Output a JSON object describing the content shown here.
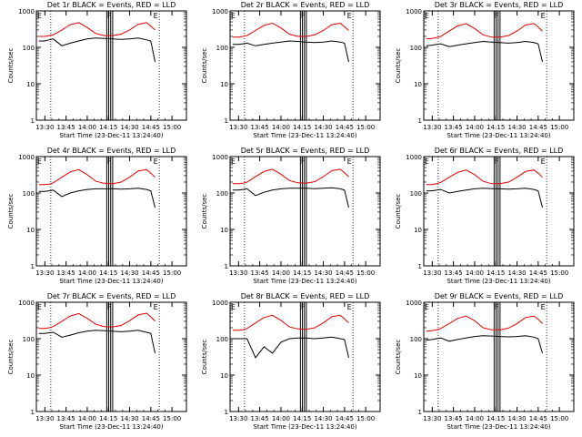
{
  "figure": {
    "black_label": "Events",
    "red_label": "LLD",
    "colors": {
      "events": "#000000",
      "lld": "#e00000",
      "axis": "#000000"
    }
  },
  "chart_data": [
    {
      "type": "line",
      "title": "Det 1r BLACK = Events, RED = LLD",
      "detector": "1r",
      "xlabel": "Start Time (23-Dec-11 13:24:40)",
      "ylabel": "Counts/sec",
      "yscale": "log",
      "ylim": [
        1,
        1000
      ],
      "y_ticks": [
        "1",
        "10",
        "100",
        "1000"
      ],
      "x_ticks": [
        "13:30",
        "13:45",
        "14:00",
        "14:15",
        "14:30",
        "14:45",
        "15:00"
      ],
      "markers": [
        "E",
        "F",
        "E"
      ],
      "series": [
        {
          "name": "Events",
          "x": [
            13.43,
            13.5,
            13.55,
            13.6,
            13.7,
            13.8,
            13.9,
            14.0,
            14.1,
            14.2,
            14.3,
            14.4,
            14.5,
            14.6,
            14.7,
            14.75,
            14.8
          ],
          "y": [
            150,
            150,
            160,
            170,
            110,
            130,
            150,
            170,
            180,
            175,
            170,
            165,
            170,
            180,
            160,
            150,
            40
          ]
        },
        {
          "name": "LLD",
          "x": [
            13.43,
            13.5,
            13.55,
            13.6,
            13.7,
            13.8,
            13.9,
            14.0,
            14.1,
            14.2,
            14.3,
            14.4,
            14.5,
            14.6,
            14.7,
            14.75,
            14.8
          ],
          "y": [
            200,
            200,
            210,
            220,
            300,
            420,
            480,
            350,
            240,
            210,
            210,
            230,
            300,
            430,
            480,
            380,
            300
          ]
        }
      ]
    },
    {
      "type": "line",
      "title": "Det 2r BLACK = Events, RED = LLD",
      "detector": "2r",
      "xlabel": "Start Time (23-Dec-11 13:24:40)",
      "ylabel": "Counts/sec",
      "yscale": "log",
      "ylim": [
        1,
        1000
      ],
      "y_ticks": [
        "1",
        "10",
        "100",
        "1000"
      ],
      "x_ticks": [
        "13:30",
        "13:45",
        "14:00",
        "14:15",
        "14:30",
        "14:45",
        "15:00"
      ],
      "markers": [
        "E",
        "F",
        "E"
      ],
      "series": [
        {
          "name": "Events",
          "x": [
            13.43,
            13.5,
            13.55,
            13.6,
            13.7,
            13.8,
            13.9,
            14.0,
            14.1,
            14.2,
            14.3,
            14.4,
            14.5,
            14.6,
            14.7,
            14.75,
            14.8
          ],
          "y": [
            120,
            120,
            125,
            130,
            110,
            120,
            130,
            140,
            150,
            145,
            140,
            135,
            140,
            150,
            140,
            130,
            40
          ]
        },
        {
          "name": "LLD",
          "x": [
            13.43,
            13.5,
            13.55,
            13.6,
            13.7,
            13.8,
            13.9,
            14.0,
            14.1,
            14.2,
            14.3,
            14.4,
            14.5,
            14.6,
            14.7,
            14.75,
            14.8
          ],
          "y": [
            190,
            190,
            200,
            210,
            290,
            400,
            460,
            340,
            230,
            200,
            200,
            220,
            290,
            420,
            460,
            370,
            290
          ]
        }
      ]
    },
    {
      "type": "line",
      "title": "Det 3r BLACK = Events, RED = LLD",
      "detector": "3r",
      "xlabel": "Start Time (23-Dec-11 13:24:40)",
      "ylabel": "Counts/sec",
      "yscale": "log",
      "ylim": [
        1,
        1000
      ],
      "y_ticks": [
        "1",
        "10",
        "100",
        "1000"
      ],
      "x_ticks": [
        "13:30",
        "13:45",
        "14:00",
        "14:15",
        "14:30",
        "14:45",
        "15:00"
      ],
      "markers": [
        "E",
        "F",
        "E"
      ],
      "series": [
        {
          "name": "Events",
          "x": [
            13.43,
            13.5,
            13.55,
            13.6,
            13.7,
            13.8,
            13.9,
            14.0,
            14.1,
            14.2,
            14.3,
            14.4,
            14.5,
            14.6,
            14.7,
            14.75,
            14.8
          ],
          "y": [
            110,
            115,
            120,
            125,
            105,
            115,
            125,
            135,
            145,
            140,
            135,
            130,
            135,
            145,
            135,
            125,
            40
          ]
        },
        {
          "name": "LLD",
          "x": [
            13.43,
            13.5,
            13.55,
            13.6,
            13.7,
            13.8,
            13.9,
            14.0,
            14.1,
            14.2,
            14.3,
            14.4,
            14.5,
            14.6,
            14.7,
            14.75,
            14.8
          ],
          "y": [
            170,
            175,
            185,
            200,
            280,
            390,
            450,
            330,
            220,
            190,
            190,
            210,
            280,
            410,
            450,
            360,
            280
          ]
        }
      ]
    },
    {
      "type": "line",
      "title": "Det 4r BLACK = Events, RED = LLD",
      "detector": "4r",
      "xlabel": "Start Time (23-Dec-11 13:24:40)",
      "ylabel": "Counts/sec",
      "yscale": "log",
      "ylim": [
        1,
        1000
      ],
      "y_ticks": [
        "1",
        "10",
        "100",
        "1000"
      ],
      "x_ticks": [
        "13:30",
        "13:45",
        "14:00",
        "14:15",
        "14:30",
        "14:45",
        "15:00"
      ],
      "markers": [
        "E",
        "F",
        "E"
      ],
      "series": [
        {
          "name": "Events",
          "x": [
            13.43,
            13.5,
            13.55,
            13.6,
            13.7,
            13.8,
            13.9,
            14.0,
            14.1,
            14.2,
            14.3,
            14.4,
            14.5,
            14.6,
            14.7,
            14.75,
            14.8
          ],
          "y": [
            110,
            110,
            115,
            120,
            80,
            100,
            115,
            125,
            130,
            130,
            130,
            128,
            130,
            135,
            125,
            115,
            40
          ]
        },
        {
          "name": "LLD",
          "x": [
            13.43,
            13.5,
            13.55,
            13.6,
            13.7,
            13.8,
            13.9,
            14.0,
            14.1,
            14.2,
            14.3,
            14.4,
            14.5,
            14.6,
            14.7,
            14.75,
            14.8
          ],
          "y": [
            170,
            170,
            175,
            190,
            270,
            380,
            440,
            320,
            210,
            185,
            180,
            200,
            270,
            400,
            440,
            350,
            270
          ]
        }
      ]
    },
    {
      "type": "line",
      "title": "Det 5r BLACK = Events, RED = LLD",
      "detector": "5r",
      "xlabel": "Start Time (23-Dec-11 13:24:40)",
      "ylabel": "Counts/sec",
      "yscale": "log",
      "ylim": [
        1,
        1000
      ],
      "y_ticks": [
        "1",
        "10",
        "100",
        "1000"
      ],
      "x_ticks": [
        "13:30",
        "13:45",
        "14:00",
        "14:15",
        "14:30",
        "14:45",
        "15:00"
      ],
      "markers": [
        "E",
        "F",
        "E"
      ],
      "series": [
        {
          "name": "Events",
          "x": [
            13.43,
            13.5,
            13.55,
            13.6,
            13.7,
            13.8,
            13.9,
            14.0,
            14.1,
            14.2,
            14.3,
            14.4,
            14.5,
            14.6,
            14.7,
            14.75,
            14.8
          ],
          "y": [
            120,
            120,
            125,
            130,
            85,
            105,
            120,
            130,
            135,
            135,
            135,
            132,
            135,
            140,
            130,
            120,
            40
          ]
        },
        {
          "name": "LLD",
          "x": [
            13.43,
            13.5,
            13.55,
            13.6,
            13.7,
            13.8,
            13.9,
            14.0,
            14.1,
            14.2,
            14.3,
            14.4,
            14.5,
            14.6,
            14.7,
            14.75,
            14.8
          ],
          "y": [
            180,
            180,
            185,
            200,
            280,
            390,
            450,
            330,
            220,
            190,
            185,
            205,
            280,
            410,
            450,
            360,
            280
          ]
        }
      ]
    },
    {
      "type": "line",
      "title": "Det 6r BLACK = Events, RED = LLD",
      "detector": "6r",
      "xlabel": "Start Time (23-Dec-11 13:24:40)",
      "ylabel": "Counts/sec",
      "yscale": "log",
      "ylim": [
        1,
        1000
      ],
      "y_ticks": [
        "1",
        "10",
        "100",
        "1000"
      ],
      "x_ticks": [
        "13:30",
        "13:45",
        "14:00",
        "14:15",
        "14:30",
        "14:45",
        "15:00"
      ],
      "markers": [
        "E",
        "F",
        "E"
      ],
      "series": [
        {
          "name": "Events",
          "x": [
            13.43,
            13.5,
            13.55,
            13.6,
            13.7,
            13.8,
            13.9,
            14.0,
            14.1,
            14.2,
            14.3,
            14.4,
            14.5,
            14.6,
            14.7,
            14.75,
            14.8
          ],
          "y": [
            115,
            115,
            120,
            125,
            100,
            110,
            120,
            130,
            135,
            132,
            130,
            128,
            130,
            135,
            125,
            115,
            40
          ]
        },
        {
          "name": "LLD",
          "x": [
            13.43,
            13.5,
            13.55,
            13.6,
            13.7,
            13.8,
            13.9,
            14.0,
            14.1,
            14.2,
            14.3,
            14.4,
            14.5,
            14.6,
            14.7,
            14.75,
            14.8
          ],
          "y": [
            170,
            170,
            180,
            195,
            270,
            370,
            430,
            320,
            210,
            180,
            180,
            200,
            270,
            390,
            430,
            350,
            270
          ]
        }
      ]
    },
    {
      "type": "line",
      "title": "Det 7r BLACK = Events, RED = LLD",
      "detector": "7r",
      "xlabel": "Start Time (23-Dec-11 13:24:40)",
      "ylabel": "Counts/sec",
      "yscale": "log",
      "ylim": [
        1,
        1000
      ],
      "y_ticks": [
        "1",
        "10",
        "100",
        "1000"
      ],
      "x_ticks": [
        "13:30",
        "13:45",
        "14:00",
        "14:15",
        "14:30",
        "14:45",
        "15:00"
      ],
      "markers": [
        "E",
        "F",
        "E"
      ],
      "series": [
        {
          "name": "Events",
          "x": [
            13.43,
            13.5,
            13.55,
            13.6,
            13.7,
            13.8,
            13.9,
            14.0,
            14.1,
            14.2,
            14.3,
            14.4,
            14.5,
            14.6,
            14.7,
            14.75,
            14.8
          ],
          "y": [
            140,
            140,
            145,
            150,
            110,
            125,
            145,
            160,
            170,
            165,
            160,
            155,
            160,
            170,
            150,
            140,
            40
          ]
        },
        {
          "name": "LLD",
          "x": [
            13.43,
            13.5,
            13.55,
            13.6,
            13.7,
            13.8,
            13.9,
            14.0,
            14.1,
            14.2,
            14.3,
            14.4,
            14.5,
            14.6,
            14.7,
            14.75,
            14.8
          ],
          "y": [
            190,
            190,
            200,
            215,
            300,
            420,
            490,
            360,
            250,
            215,
            210,
            230,
            310,
            450,
            500,
            400,
            300
          ]
        }
      ]
    },
    {
      "type": "line",
      "title": "Det 8r BLACK = Events, RED = LLD",
      "detector": "8r",
      "xlabel": "Start Time (23-Dec-11 13:24:40)",
      "ylabel": "Counts/sec",
      "yscale": "log",
      "ylim": [
        1,
        1000
      ],
      "y_ticks": [
        "1",
        "10",
        "100",
        "1000"
      ],
      "x_ticks": [
        "13:30",
        "13:45",
        "14:00",
        "14:15",
        "14:30",
        "14:45",
        "15:00"
      ],
      "markers": [
        "E",
        "F",
        "E"
      ],
      "series": [
        {
          "name": "Events",
          "x": [
            13.43,
            13.5,
            13.55,
            13.6,
            13.7,
            13.8,
            13.9,
            14.0,
            14.1,
            14.2,
            14.3,
            14.4,
            14.5,
            14.6,
            14.7,
            14.75,
            14.8
          ],
          "y": [
            100,
            100,
            100,
            100,
            30,
            60,
            40,
            80,
            100,
            105,
            105,
            100,
            105,
            110,
            100,
            95,
            30
          ]
        },
        {
          "name": "LLD",
          "x": [
            13.43,
            13.5,
            13.55,
            13.6,
            13.7,
            13.8,
            13.9,
            14.0,
            14.1,
            14.2,
            14.3,
            14.4,
            14.5,
            14.6,
            14.7,
            14.75,
            14.8
          ],
          "y": [
            170,
            170,
            175,
            190,
            270,
            380,
            440,
            320,
            210,
            185,
            180,
            200,
            270,
            400,
            440,
            350,
            270
          ]
        }
      ]
    },
    {
      "type": "line",
      "title": "Det 9r BLACK = Events, RED = LLD",
      "detector": "9r",
      "xlabel": "Start Time (23-Dec-11 13:24:40)",
      "ylabel": "Counts/sec",
      "yscale": "log",
      "ylim": [
        1,
        1000
      ],
      "y_ticks": [
        "1",
        "10",
        "100",
        "1000"
      ],
      "x_ticks": [
        "13:30",
        "13:45",
        "14:00",
        "14:15",
        "14:30",
        "14:45",
        "15:00"
      ],
      "markers": [
        "E",
        "F",
        "E"
      ],
      "series": [
        {
          "name": "Events",
          "x": [
            13.43,
            13.5,
            13.55,
            13.6,
            13.7,
            13.8,
            13.9,
            14.0,
            14.1,
            14.2,
            14.3,
            14.4,
            14.5,
            14.6,
            14.7,
            14.75,
            14.8
          ],
          "y": [
            90,
            95,
            100,
            105,
            85,
            95,
            105,
            115,
            120,
            118,
            115,
            112,
            115,
            120,
            110,
            100,
            40
          ]
        },
        {
          "name": "LLD",
          "x": [
            13.43,
            13.5,
            13.55,
            13.6,
            13.7,
            13.8,
            13.9,
            14.0,
            14.1,
            14.2,
            14.3,
            14.4,
            14.5,
            14.6,
            14.7,
            14.75,
            14.8
          ],
          "y": [
            160,
            165,
            175,
            190,
            260,
            360,
            420,
            310,
            200,
            175,
            175,
            195,
            260,
            380,
            420,
            340,
            260
          ]
        }
      ]
    }
  ]
}
